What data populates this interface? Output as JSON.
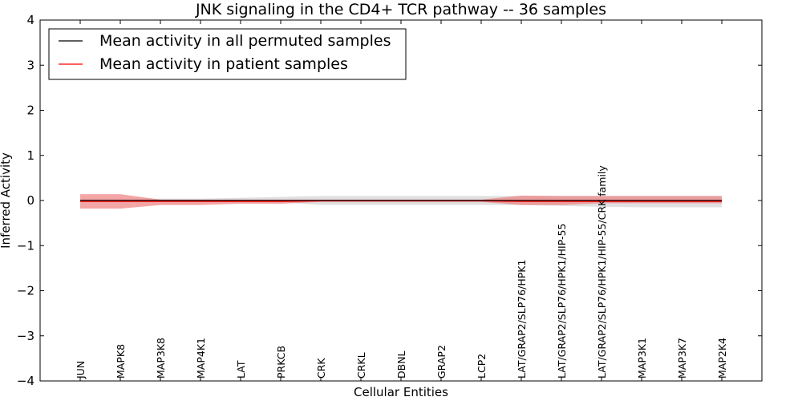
{
  "chart_data": {
    "type": "line",
    "title": "JNK signaling in the CD4+ TCR pathway -- 36 samples",
    "xlabel": "Cellular Entities",
    "ylabel": "Inferred Activity",
    "ylim": [
      -4,
      4
    ],
    "yticks": [
      -4,
      -3,
      -2,
      -1,
      0,
      1,
      2,
      3,
      4
    ],
    "ytick_labels": [
      "−4",
      "−3",
      "−2",
      "−1",
      "0",
      "1",
      "2",
      "3",
      "4"
    ],
    "xlim": [
      -1,
      17
    ],
    "grid": false,
    "legend_position": "top-left",
    "categories": [
      "JUN",
      "MAPK8",
      "MAP3K8",
      "MAP4K1",
      "LAT",
      "PRKCB",
      "CRK",
      "CRKL",
      "DBNL",
      "GRAP2",
      "LCP2",
      "LAT/GRAP2/SLP76/HPK1",
      "LAT/GRAP2/SLP76/HPK1/HIP-55",
      "LAT/GRAP2/SLP76/HPK1/HIP-55/CRK family",
      "MAP3K1",
      "MAP3K7",
      "MAP2K4"
    ],
    "series": [
      {
        "name": "Mean activity in all permuted samples",
        "color": "#000000",
        "band_color": "#bbbbbb",
        "values": [
          0,
          0,
          0,
          0,
          0,
          0,
          0,
          0,
          0,
          0,
          0,
          0,
          0,
          0,
          0,
          0,
          0
        ],
        "lower": [
          -0.04,
          -0.04,
          -0.04,
          -0.04,
          -0.04,
          -0.04,
          -0.1,
          -0.1,
          -0.1,
          -0.1,
          -0.1,
          -0.1,
          -0.12,
          -0.14,
          -0.15,
          -0.15,
          -0.15
        ],
        "upper": [
          0.04,
          0.04,
          0.04,
          0.04,
          0.06,
          0.08,
          0.1,
          0.1,
          0.1,
          0.1,
          0.1,
          0.1,
          0.1,
          0.1,
          0.1,
          0.1,
          0.1
        ]
      },
      {
        "name": "Mean activity in patient samples",
        "color": "#ff0000",
        "band_color": "#f08080",
        "values": [
          -0.02,
          -0.02,
          -0.02,
          -0.02,
          -0.02,
          -0.02,
          -0.01,
          -0.01,
          -0.01,
          -0.01,
          -0.01,
          -0.02,
          -0.02,
          -0.02,
          -0.02,
          -0.02,
          -0.02
        ],
        "lower": [
          -0.18,
          -0.18,
          -0.1,
          -0.1,
          -0.07,
          -0.07,
          -0.03,
          -0.03,
          -0.03,
          -0.03,
          -0.03,
          -0.1,
          -0.1,
          -0.06,
          -0.06,
          -0.06,
          -0.06
        ],
        "upper": [
          0.14,
          0.14,
          0.02,
          0.02,
          0.02,
          0.02,
          0.02,
          0.02,
          0.02,
          0.02,
          0.02,
          0.11,
          0.1,
          0.1,
          0.1,
          0.1,
          0.1
        ]
      }
    ]
  }
}
